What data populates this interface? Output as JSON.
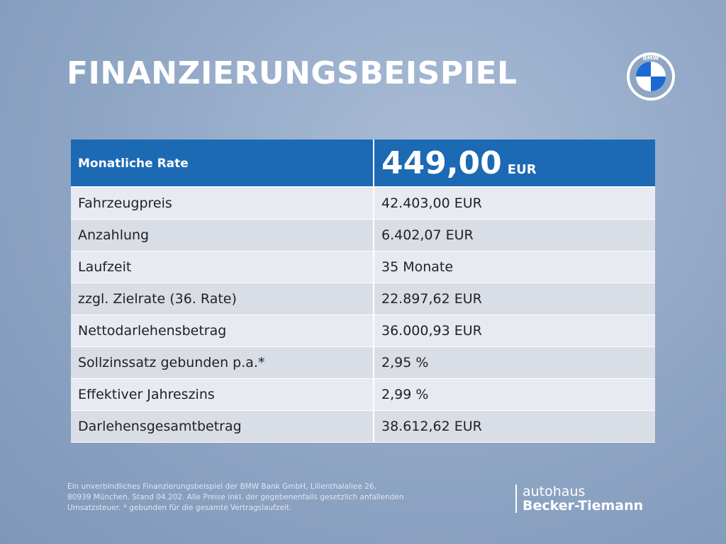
{
  "header": {
    "title": "FINANZIERUNGSBEISPIEL",
    "brand_logo": "BMW"
  },
  "table": {
    "header": {
      "label": "Monatliche Rate",
      "amount": "449,00",
      "currency": "EUR"
    },
    "rows": [
      [
        "Fahrzeugpreis",
        "42.403,00 EUR"
      ],
      [
        "Anzahlung",
        "6.402,07 EUR"
      ],
      [
        "Laufzeit",
        "35 Monate"
      ],
      [
        "zzgl. Zielrate (36. Rate)",
        "22.897,62 EUR"
      ],
      [
        "Nettodarlehensbetrag",
        "36.000,93 EUR"
      ],
      [
        "Sollzinssatz gebunden p.a.*",
        "2,95 %"
      ],
      [
        "Effektiver Jahreszins",
        "2,99 %"
      ],
      [
        "Darlehensgesamtbetrag",
        "38.612,62 EUR"
      ]
    ]
  },
  "footer": {
    "disclaimer": [
      "Ein unverbindliches Finanzierungsbeispiel der BMW Bank GmbH, Lilienthalallee 26,",
      "80939 München. Stand 04.202. Alle Preise inkl. der gegebenenfalls gesetzlich anfallenden",
      "Umsatzsteuer. * gebunden für die gesamte Vertragslaufzeit."
    ],
    "dealer": {
      "line1": "autohaus",
      "line2": "Becker-Tiemann"
    }
  }
}
